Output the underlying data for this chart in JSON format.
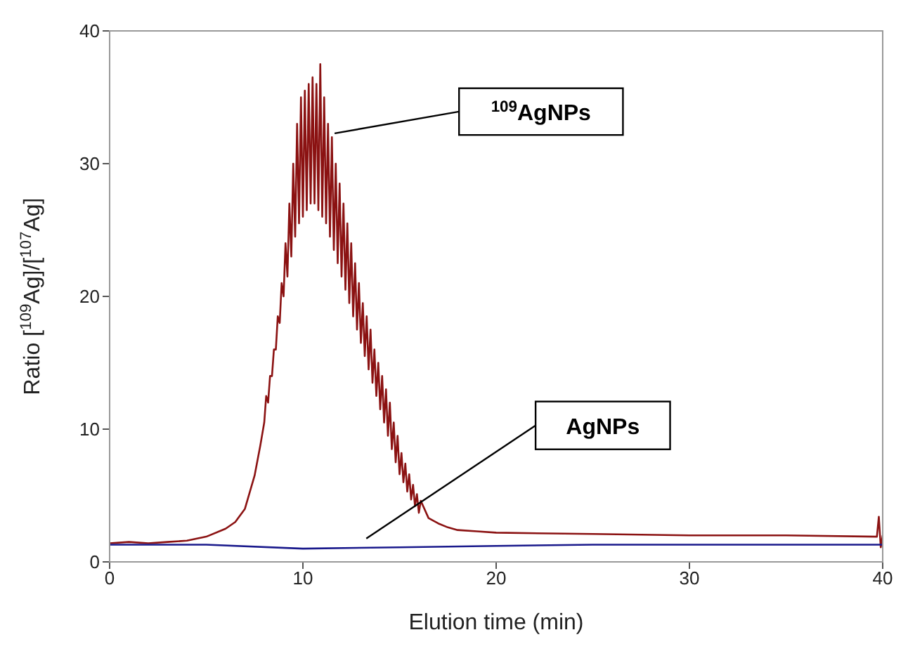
{
  "chart_data": {
    "type": "line",
    "xlabel": "Elution time (min)",
    "ylabel": "Ratio [$^{109}$Ag]/[$^{107}$Ag]",
    "xlim": [
      0,
      40
    ],
    "xticks": [
      0,
      10,
      20,
      30,
      40
    ],
    "ylim": [
      0,
      40
    ],
    "yticks": [
      0,
      10,
      20,
      30,
      40
    ],
    "grid": false,
    "marker": "none",
    "line_style": "solid",
    "series": [
      {
        "color": "#8b1212",
        "x": [
          0,
          1,
          2,
          3,
          4,
          5,
          6,
          6.5,
          7,
          7.5,
          7.8,
          8.0,
          8.1,
          8.2,
          8.3,
          8.4,
          8.5,
          8.6,
          8.7,
          8.8,
          8.9,
          9.0,
          9.1,
          9.2,
          9.3,
          9.4,
          9.5,
          9.6,
          9.7,
          9.8,
          9.9,
          10.0,
          10.1,
          10.2,
          10.3,
          10.4,
          10.5,
          10.6,
          10.7,
          10.8,
          10.9,
          11.0,
          11.1,
          11.2,
          11.3,
          11.4,
          11.5,
          11.6,
          11.7,
          11.8,
          11.9,
          12.0,
          12.1,
          12.2,
          12.3,
          12.4,
          12.5,
          12.6,
          12.7,
          12.8,
          12.9,
          13.0,
          13.1,
          13.2,
          13.3,
          13.4,
          13.5,
          13.6,
          13.7,
          13.8,
          13.9,
          14.0,
          14.1,
          14.2,
          14.3,
          14.4,
          14.5,
          14.6,
          14.7,
          14.8,
          14.9,
          15.0,
          15.1,
          15.2,
          15.3,
          15.4,
          15.5,
          15.6,
          15.7,
          15.8,
          15.9,
          16.0,
          16.1,
          16.5,
          17,
          17.5,
          18,
          19,
          20,
          25,
          30,
          35,
          39.7,
          39.8,
          39.9,
          40
        ],
        "values": [
          1.4,
          1.5,
          1.4,
          1.5,
          1.6,
          1.9,
          2.5,
          3.0,
          4.0,
          6.5,
          8.8,
          10.5,
          12.5,
          12,
          14,
          14,
          16,
          16,
          18.5,
          18,
          21,
          20,
          24,
          21.5,
          27,
          23,
          30,
          24.5,
          33,
          25.5,
          35,
          26,
          35.5,
          26.5,
          36,
          27,
          36.5,
          27,
          36,
          26.5,
          37.5,
          26,
          35,
          25.5,
          33,
          24.5,
          32,
          23.5,
          30,
          22.5,
          28.5,
          21.5,
          27,
          20.5,
          25.5,
          19.5,
          24,
          18.5,
          22.5,
          17.5,
          21,
          16.5,
          19.5,
          15.5,
          18.5,
          14.5,
          17.5,
          13.5,
          16,
          12.5,
          15,
          11.5,
          14,
          10.5,
          13,
          9.5,
          12,
          8.5,
          10.5,
          7.5,
          9.5,
          6.6,
          8.2,
          6,
          7.4,
          5.3,
          6.6,
          4.7,
          5.8,
          4.2,
          5.1,
          3.7,
          4.6,
          3.3,
          2.9,
          2.6,
          2.4,
          2.3,
          2.2,
          2.1,
          2.0,
          2.0,
          1.9,
          3.4,
          1.1,
          2.0
        ]
      },
      {
        "color": "#1a1a8c",
        "x": [
          0,
          5,
          10,
          15,
          20,
          25,
          30,
          35,
          40
        ],
        "values": [
          1.3,
          1.3,
          1.0,
          1.1,
          1.2,
          1.3,
          1.3,
          1.3,
          1.3
        ]
      }
    ],
    "annotations": [
      "$^{109}$AgNPs",
      "AgNPs"
    ]
  }
}
